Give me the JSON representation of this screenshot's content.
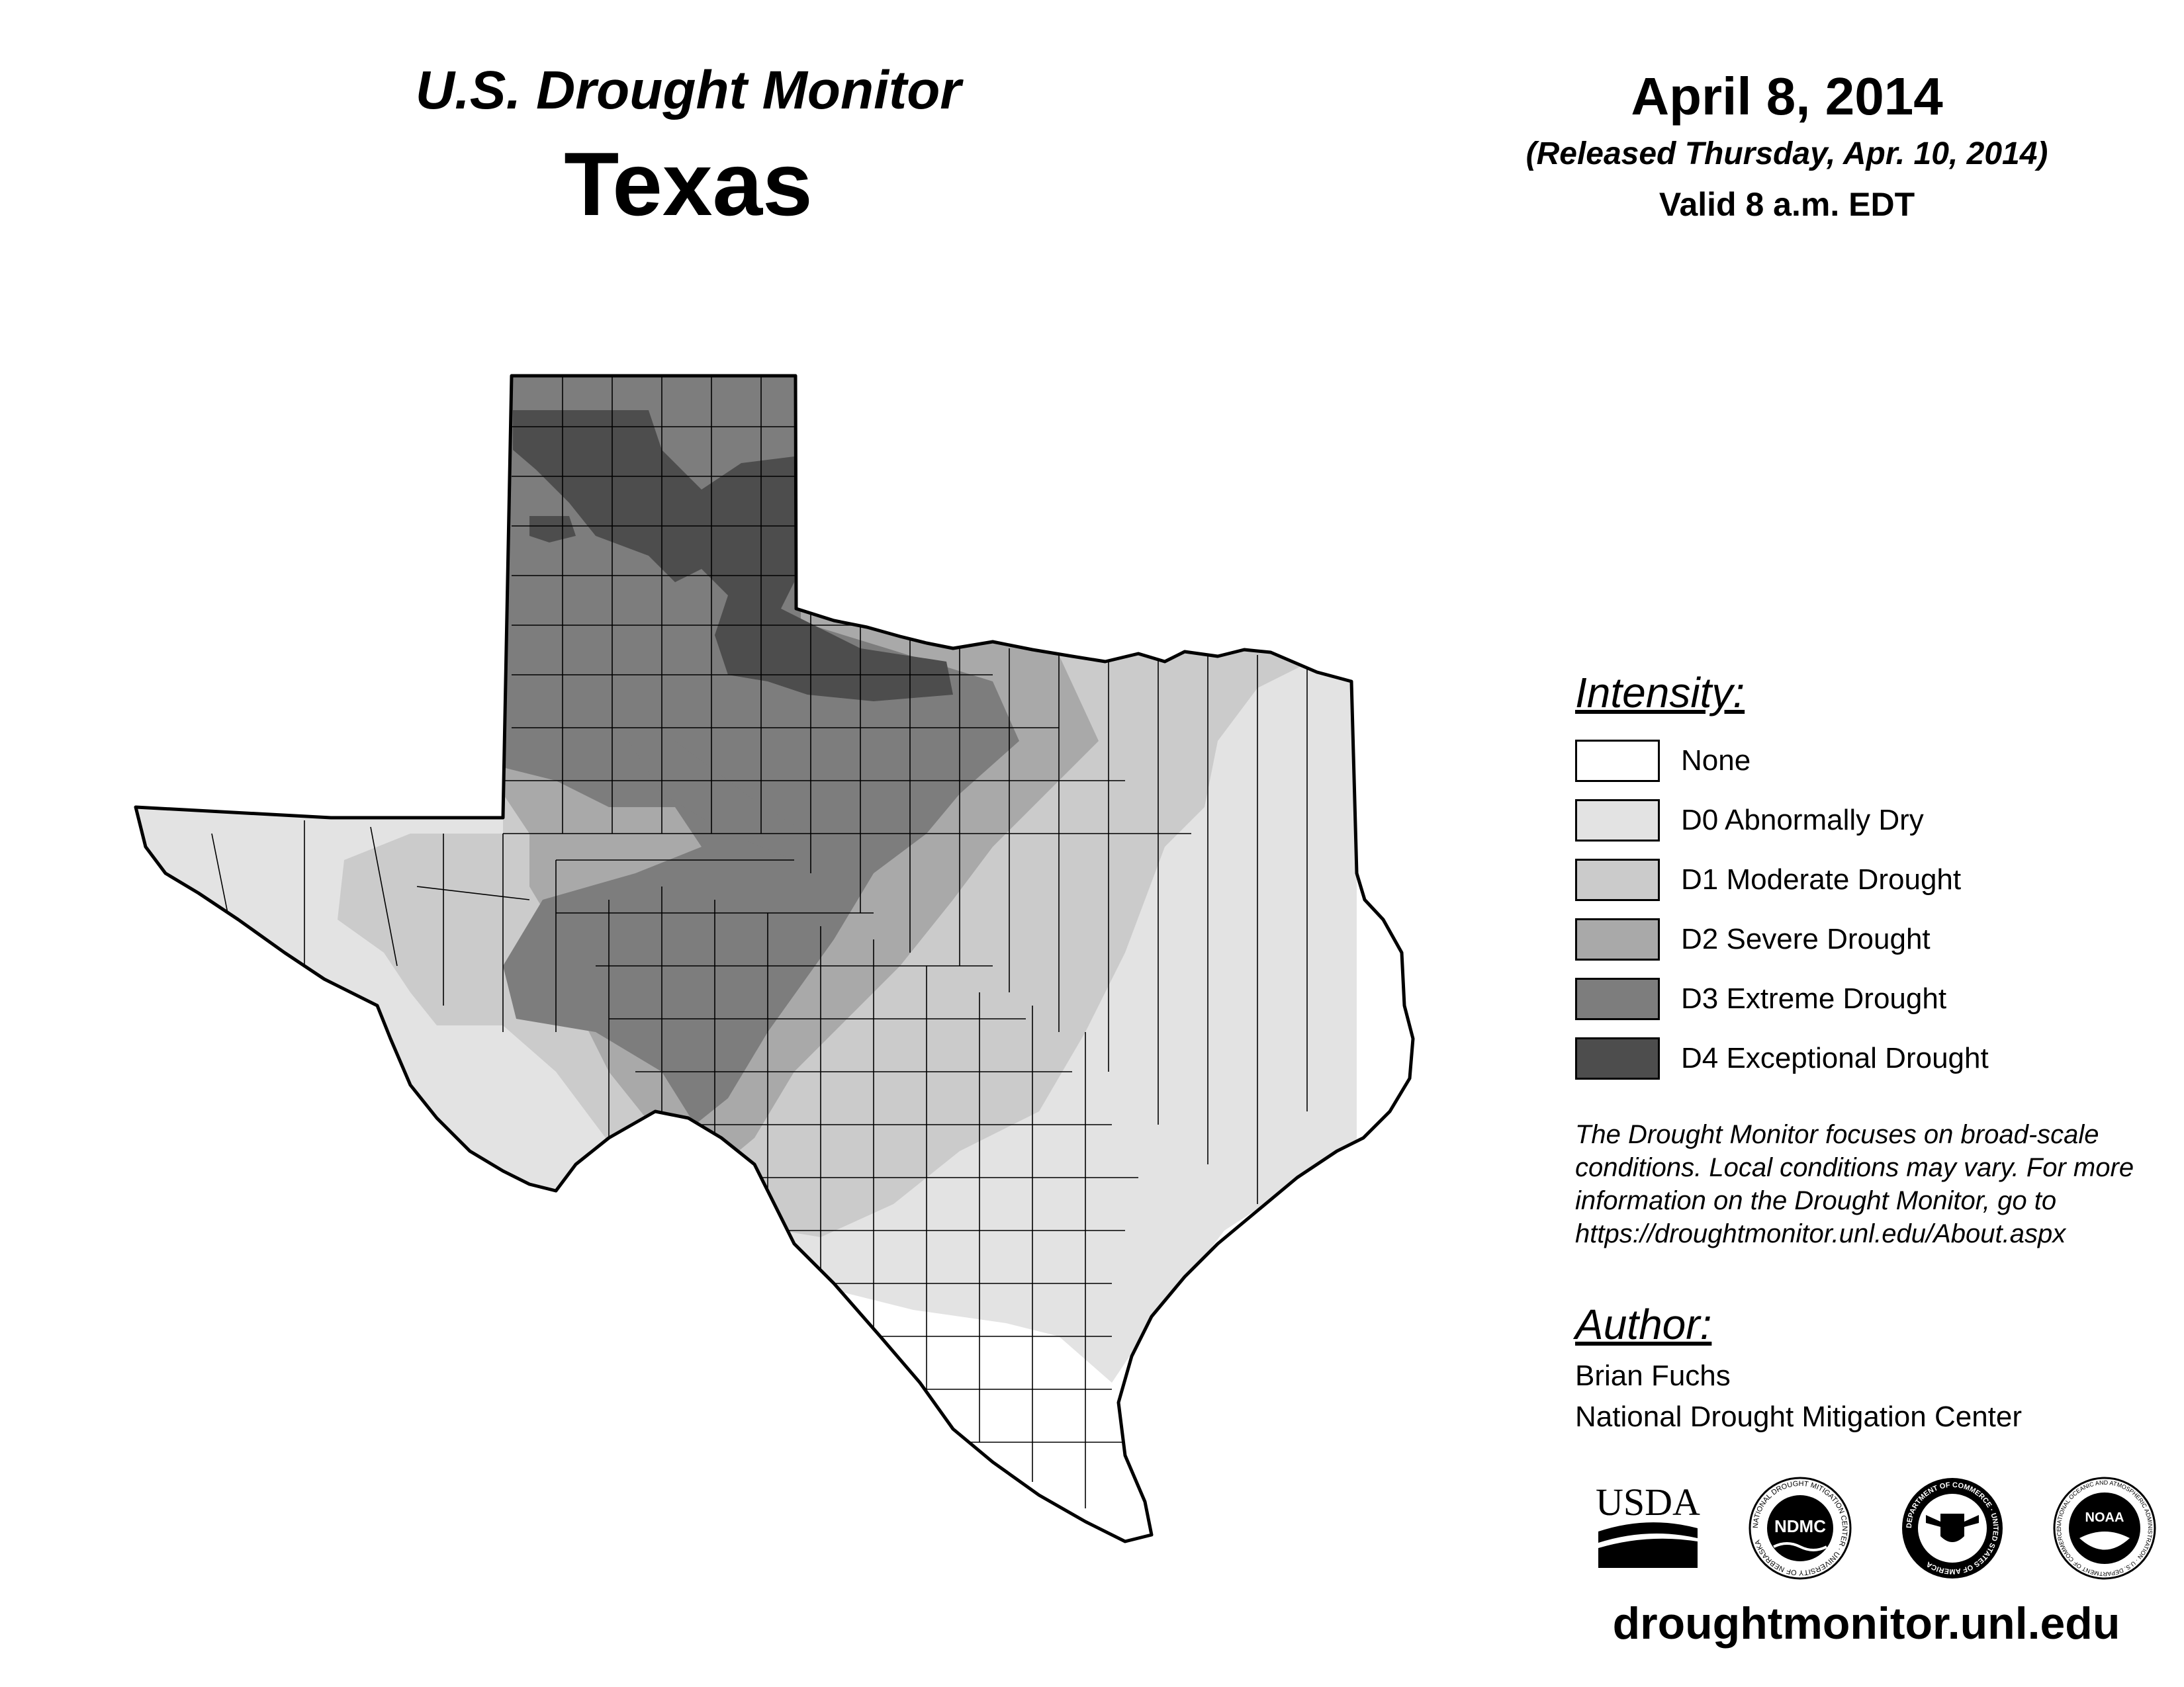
{
  "header": {
    "title": "U.S. Drought Monitor",
    "state": "Texas",
    "date": "April 8, 2014",
    "released": "(Released Thursday, Apr. 10, 2014)",
    "valid": "Valid 8 a.m. EDT"
  },
  "legend": {
    "title": "Intensity:",
    "items": [
      {
        "label": "None",
        "color": "#ffffff"
      },
      {
        "label": "D0 Abnormally Dry",
        "color": "#e3e3e3"
      },
      {
        "label": "D1 Moderate Drought",
        "color": "#cbcbcb"
      },
      {
        "label": "D2 Severe Drought",
        "color": "#a9a9a9"
      },
      {
        "label": "D3 Extreme Drought",
        "color": "#7d7d7d"
      },
      {
        "label": "D4 Exceptional Drought",
        "color": "#4d4d4d"
      }
    ]
  },
  "note": "The Drought Monitor focuses on broad-scale conditions. Local conditions may vary. For more information on the Drought Monitor, go to https://droughtmonitor.unl.edu/About.aspx",
  "author": {
    "heading": "Author:",
    "name": "Brian Fuchs",
    "org": "National Drought Mitigation Center"
  },
  "logos": {
    "usda": "USDA",
    "ndmc": "NDMC",
    "ndmc_ring": "NATIONAL DROUGHT MITIGATION CENTER · UNIVERSITY OF NEBRASKA",
    "commerce_ring": "DEPARTMENT OF COMMERCE · UNITED STATES OF AMERICA",
    "noaa": "NOAA",
    "noaa_ring": "NATIONAL OCEANIC AND ATMOSPHERIC ADMINISTRATION · U.S. DEPARTMENT OF COMMERCE"
  },
  "url": "droughtmonitor.unl.edu"
}
